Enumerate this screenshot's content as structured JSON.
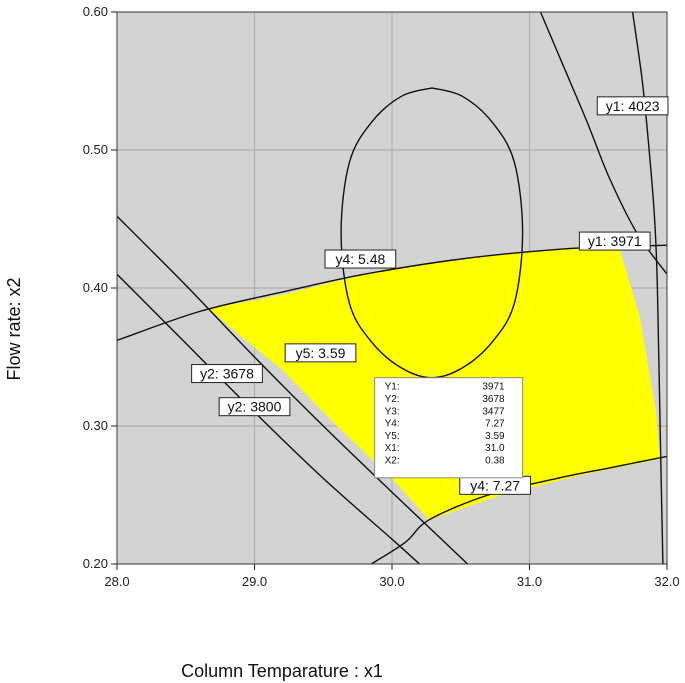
{
  "chart_data": {
    "type": "contour",
    "xlabel": "Column Temparature : x1",
    "ylabel": "Flow rate: x2",
    "xlim": [
      28.0,
      32.0
    ],
    "ylim": [
      0.2,
      0.6
    ],
    "x_ticks": [
      "28.0",
      "29.0",
      "30.0",
      "31.0",
      "32.0"
    ],
    "y_ticks": [
      "0.20",
      "0.30",
      "0.40",
      "0.50",
      "0.60"
    ],
    "grid": true,
    "colors": {
      "background": "#d3d3d3",
      "feasible_region": "#ffff00",
      "contour": "#111111",
      "grid": "#b0b0b0"
    },
    "feasible_region": {
      "fill": "#ffff00",
      "boundary": [
        [
          28.67,
          0.385
        ],
        [
          29.2,
          0.395
        ],
        [
          29.8,
          0.41
        ],
        [
          30.5,
          0.421
        ],
        [
          31.2,
          0.428
        ],
        [
          31.65,
          0.43
        ],
        [
          31.8,
          0.38
        ],
        [
          31.92,
          0.31
        ],
        [
          31.95,
          0.276
        ],
        [
          31.4,
          0.265
        ],
        [
          30.8,
          0.25
        ],
        [
          30.27,
          0.232
        ],
        [
          30.0,
          0.262
        ],
        [
          29.6,
          0.3
        ],
        [
          29.2,
          0.341
        ],
        [
          28.9,
          0.365
        ]
      ]
    },
    "contours": [
      {
        "name": "y4: 7.27",
        "points": [
          [
            29.85,
            0.2
          ],
          [
            30.1,
            0.216
          ],
          [
            30.27,
            0.232
          ],
          [
            30.7,
            0.25
          ],
          [
            31.2,
            0.262
          ],
          [
            31.6,
            0.27
          ],
          [
            32.0,
            0.278
          ]
        ]
      },
      {
        "name": "y4: 5.48",
        "points": [
          [
            28.0,
            0.362
          ],
          [
            28.6,
            0.383
          ],
          [
            29.2,
            0.397
          ],
          [
            29.8,
            0.41
          ],
          [
            30.5,
            0.421
          ],
          [
            31.2,
            0.428
          ],
          [
            31.65,
            0.43
          ],
          [
            32.0,
            0.431
          ]
        ]
      },
      {
        "name": "y2: 3678",
        "points": [
          [
            28.0,
            0.452
          ],
          [
            28.5,
            0.402
          ],
          [
            29.0,
            0.35
          ],
          [
            29.5,
            0.3
          ],
          [
            30.0,
            0.252
          ],
          [
            30.55,
            0.2
          ]
        ]
      },
      {
        "name": "y2: 3800",
        "points": [
          [
            28.0,
            0.41
          ],
          [
            28.5,
            0.36
          ],
          [
            29.0,
            0.31
          ],
          [
            29.5,
            0.262
          ],
          [
            30.0,
            0.218
          ],
          [
            30.2,
            0.2
          ]
        ]
      },
      {
        "name": "y1: 4023",
        "points": [
          [
            31.08,
            0.6
          ],
          [
            31.25,
            0.56
          ],
          [
            31.42,
            0.52
          ],
          [
            31.58,
            0.48
          ],
          [
            31.78,
            0.44
          ],
          [
            32.0,
            0.41
          ]
        ]
      },
      {
        "name": "y1: 3971",
        "points": [
          [
            31.75,
            0.6
          ],
          [
            31.82,
            0.55
          ],
          [
            31.87,
            0.5
          ],
          [
            31.91,
            0.45
          ],
          [
            31.93,
            0.4
          ],
          [
            31.95,
            0.3
          ],
          [
            31.97,
            0.2
          ]
        ]
      },
      {
        "name": "circle",
        "points": [
          [
            30.29,
            0.545
          ],
          [
            30.51,
            0.539
          ],
          [
            30.73,
            0.52
          ],
          [
            30.89,
            0.491
          ],
          [
            30.95,
            0.44
          ],
          [
            30.89,
            0.389
          ],
          [
            30.73,
            0.361
          ],
          [
            30.51,
            0.342
          ],
          [
            30.29,
            0.335
          ],
          [
            30.07,
            0.342
          ],
          [
            29.85,
            0.361
          ],
          [
            29.69,
            0.389
          ],
          [
            29.63,
            0.44
          ],
          [
            29.69,
            0.491
          ],
          [
            29.85,
            0.52
          ],
          [
            30.07,
            0.539
          ],
          [
            30.29,
            0.545
          ]
        ]
      }
    ],
    "annotations": [
      {
        "text": "y1: 4023",
        "x": 31.75,
        "y": 0.532
      },
      {
        "text": "y1: 3971",
        "x": 31.62,
        "y": 0.434
      },
      {
        "text": "y4: 5.48",
        "x": 29.77,
        "y": 0.421
      },
      {
        "text": "y5: 3.59",
        "x": 29.48,
        "y": 0.353
      },
      {
        "text": "y2: 3678",
        "x": 28.8,
        "y": 0.338
      },
      {
        "text": "y2: 3800",
        "x": 29.0,
        "y": 0.314
      },
      {
        "text": "y4: 7.27",
        "x": 30.75,
        "y": 0.257
      }
    ],
    "tooltip": {
      "x": 30.95,
      "y": 0.335,
      "rows": [
        {
          "key": "Y1:",
          "value": "3971"
        },
        {
          "key": "Y2:",
          "value": "3678"
        },
        {
          "key": "Y3:",
          "value": "3477"
        },
        {
          "key": "Y4:",
          "value": "7.27"
        },
        {
          "key": "Y5:",
          "value": "3.59"
        },
        {
          "key": "X1:",
          "value": "31.0"
        },
        {
          "key": "X2:",
          "value": "0.38"
        }
      ]
    }
  }
}
